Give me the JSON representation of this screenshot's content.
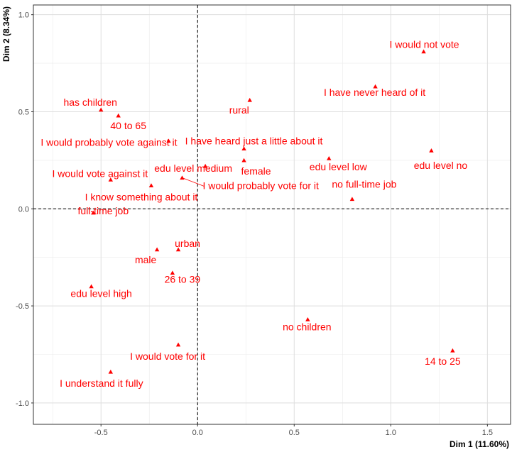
{
  "chart_data": {
    "type": "scatter",
    "title": "",
    "xlabel": "Dim 1 (11.60%)",
    "ylabel": "Dim 2 (8.34%)",
    "xlim": [
      -0.85,
      1.62
    ],
    "ylim": [
      -1.11,
      1.05
    ],
    "x_ticks": [
      -0.5,
      0.0,
      0.5,
      1.0,
      1.5
    ],
    "x_tick_labels": [
      "-0.5",
      "0.0",
      "0.5",
      "1.0",
      "1.5"
    ],
    "y_ticks": [
      -1.0,
      -0.5,
      0.0,
      0.5,
      1.0
    ],
    "y_tick_labels": [
      "-1.0",
      "-0.5",
      "0.0",
      "0.5",
      "1.0"
    ],
    "grid": true,
    "reference_lines": {
      "x": 0,
      "y": 0,
      "style": "dashed"
    },
    "point_color": "#FF0000",
    "grid_color": "#DEDEDE",
    "points": [
      {
        "label": "I would not vote",
        "x": 1.17,
        "y": 0.81
      },
      {
        "label": "I have never heard of it",
        "x": 0.92,
        "y": 0.63
      },
      {
        "label": "has children",
        "x": -0.5,
        "y": 0.51
      },
      {
        "label": "40 to 65",
        "x": -0.41,
        "y": 0.48
      },
      {
        "label": "rural",
        "x": 0.27,
        "y": 0.56
      },
      {
        "label": "I would probably vote against it",
        "x": -0.15,
        "y": 0.35
      },
      {
        "label": "I have heard just a little about it",
        "x": 0.24,
        "y": 0.31
      },
      {
        "label": "edu level no",
        "x": 1.21,
        "y": 0.3
      },
      {
        "label": "edu level medium",
        "x": 0.04,
        "y": 0.22
      },
      {
        "label": "female",
        "x": 0.24,
        "y": 0.25
      },
      {
        "label": "edu level low",
        "x": 0.68,
        "y": 0.26
      },
      {
        "label": "I would vote against it",
        "x": -0.45,
        "y": 0.15
      },
      {
        "label": "I would probably vote for it",
        "x": -0.08,
        "y": 0.16
      },
      {
        "label": "I know something about it",
        "x": -0.24,
        "y": 0.12
      },
      {
        "label": "no full-time job",
        "x": 0.8,
        "y": 0.05
      },
      {
        "label": "full-time job",
        "x": -0.54,
        "y": -0.02
      },
      {
        "label": "urban",
        "x": -0.1,
        "y": -0.21
      },
      {
        "label": "male",
        "x": -0.21,
        "y": -0.21
      },
      {
        "label": "26 to 39",
        "x": -0.13,
        "y": -0.33
      },
      {
        "label": "edu level high",
        "x": -0.55,
        "y": -0.4
      },
      {
        "label": "no children",
        "x": 0.57,
        "y": -0.57
      },
      {
        "label": "I would vote for it",
        "x": -0.1,
        "y": -0.7
      },
      {
        "label": "14 to 25",
        "x": 1.32,
        "y": -0.73
      },
      {
        "label": "I understand it fully",
        "x": -0.45,
        "y": -0.84
      }
    ]
  }
}
